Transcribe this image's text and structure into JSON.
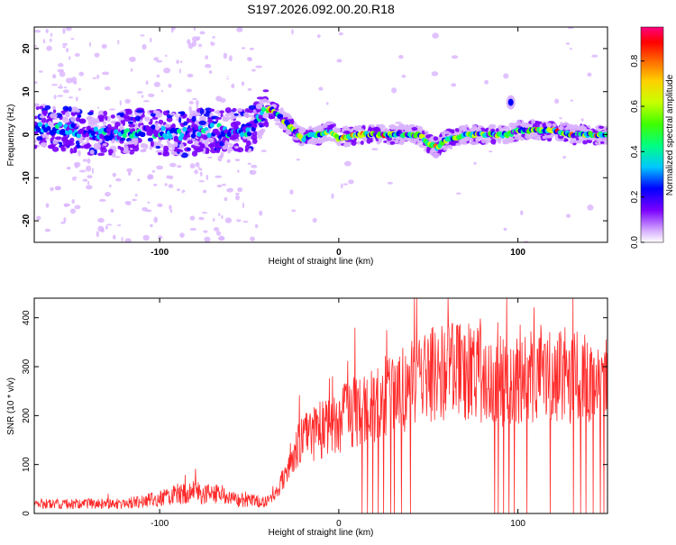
{
  "title": "S197.2026.092.00.20.R18",
  "chart_data": [
    {
      "type": "heatmap",
      "name": "spectrogram",
      "xlabel": "Height of straight line (km)",
      "ylabel": "Frequency (Hz)",
      "xlim": [
        -170,
        150
      ],
      "ylim": [
        -25,
        25
      ],
      "xticks": [
        -100,
        0,
        100
      ],
      "yticks": [
        -20,
        -10,
        0,
        10,
        20
      ],
      "ridge": {
        "x": [
          -170,
          -150,
          -130,
          -110,
          -90,
          -70,
          -50,
          -42,
          -38,
          -35,
          -30,
          -25,
          -20,
          -15,
          -10,
          -5,
          0,
          10,
          20,
          30,
          40,
          45,
          50,
          55,
          60,
          65,
          70,
          80,
          90,
          95,
          100,
          110,
          120,
          130,
          140,
          150
        ],
        "y": [
          2,
          1,
          0,
          1,
          0,
          1,
          1,
          5,
          6,
          5,
          3,
          1,
          -1,
          0,
          0,
          1,
          -1,
          0,
          0,
          0,
          0,
          0,
          -2,
          -3,
          -1,
          -1,
          0,
          0,
          0,
          0,
          1,
          1,
          1,
          0,
          0,
          0
        ]
      },
      "spot": {
        "x": 96,
        "y": 7.5
      },
      "colorbar": {
        "label": "Normalized spectral amplitude",
        "range": [
          0,
          0.95
        ],
        "ticks": [
          "0.0",
          "0.2",
          "0.4",
          "0.6",
          "0.8"
        ]
      }
    },
    {
      "type": "line",
      "name": "snr",
      "xlabel": "Height of straight line (km)",
      "ylabel": "SNR (10 * v/v)",
      "xlim": [
        -170,
        150
      ],
      "ylim": [
        0,
        440
      ],
      "xticks": [
        -100,
        0,
        100
      ],
      "yticks": [
        0,
        100,
        200,
        300,
        400
      ],
      "color": "#ff2a2a",
      "trend": {
        "x": [
          -170,
          -120,
          -110,
          -100,
          -90,
          -80,
          -70,
          -60,
          -50,
          -40,
          -35,
          -30,
          -25,
          -20,
          -10,
          0,
          10,
          20,
          30,
          40,
          50,
          60,
          70,
          80,
          90,
          100,
          110,
          120,
          130,
          140,
          150
        ],
        "y": [
          20,
          20,
          25,
          30,
          40,
          45,
          40,
          30,
          25,
          25,
          40,
          80,
          130,
          150,
          170,
          190,
          210,
          220,
          240,
          260,
          280,
          290,
          290,
          280,
          270,
          280,
          285,
          275,
          280,
          270,
          265
        ]
      },
      "dropouts": [
        13,
        16,
        19,
        22,
        25,
        29,
        31,
        35,
        40,
        87,
        89,
        92,
        95,
        98,
        105,
        118,
        131,
        135,
        138,
        142,
        146,
        148
      ]
    }
  ]
}
